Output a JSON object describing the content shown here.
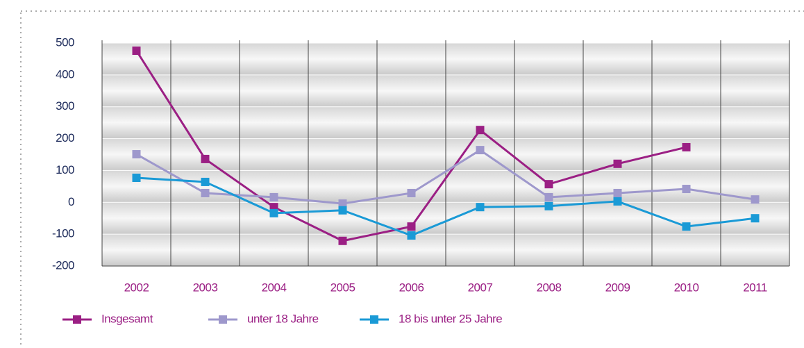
{
  "chart_data": {
    "type": "line",
    "categories": [
      "2002",
      "2003",
      "2004",
      "2005",
      "2006",
      "2007",
      "2008",
      "2009",
      "2010",
      "2011"
    ],
    "series": [
      {
        "name": "Insgesamt",
        "color": "#9b1f84",
        "values": [
          476,
          136,
          -15,
          -121,
          -76,
          227,
          57,
          121,
          173,
          null
        ]
      },
      {
        "name": "unter 18 Jahre",
        "color": "#9e98cc",
        "values": [
          151,
          29,
          16,
          -4,
          29,
          164,
          16,
          29,
          42,
          9
        ]
      },
      {
        "name": "18 bis unter 25 Jahre",
        "color": "#1a9ad6",
        "values": [
          77,
          64,
          -34,
          -25,
          -104,
          -15,
          -12,
          3,
          -76,
          -50
        ]
      }
    ],
    "ylim": [
      -200,
      500
    ],
    "yticks": [
      -200,
      -100,
      0,
      100,
      200,
      300,
      400,
      500
    ],
    "grid": true
  }
}
